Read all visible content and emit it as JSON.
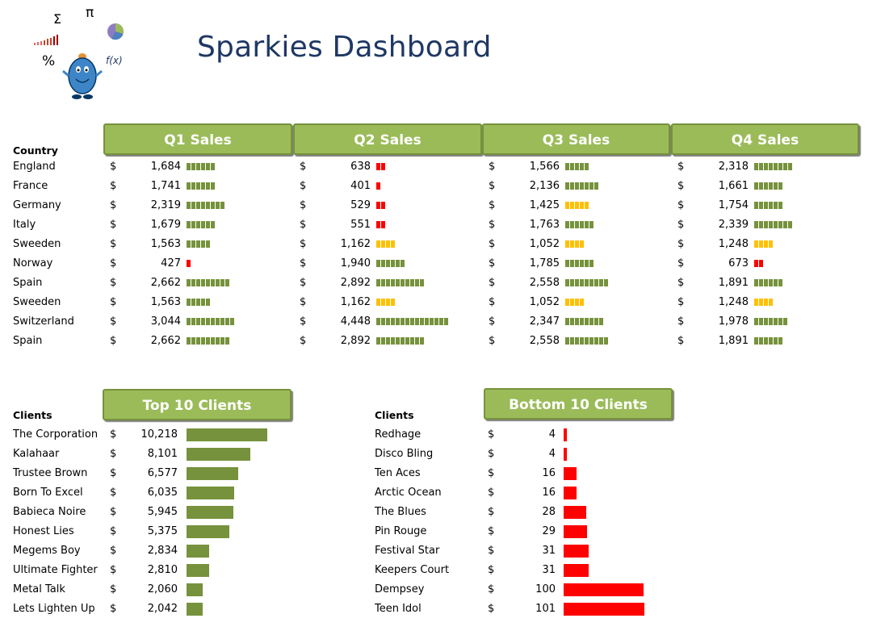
{
  "title": "Sparkies Dashboard",
  "colors": {
    "green_bar": "#76923c",
    "amber_bar": "#ffc000",
    "red_bar": "#ff0000",
    "header_fill": "#9bbb59",
    "title_color": "#1f3864"
  },
  "logo": {
    "icons": [
      "sigma-icon",
      "pi-icon",
      "pie-chart-icon",
      "bar-signal-icon",
      "percent-icon",
      "function-icon",
      "mascot-icon"
    ],
    "sigma": "Σ",
    "pi": "π",
    "percent": "%",
    "fx": "f(x)"
  },
  "currency_symbol": "$",
  "quarterly": {
    "country_label": "Country",
    "quarters": [
      "Q1 Sales",
      "Q2 Sales",
      "Q3 Sales",
      "Q4 Sales"
    ],
    "countries": [
      "England",
      "France",
      "Germany",
      "Italy",
      "Sweeden",
      "Norway",
      "Spain",
      "Sweeden",
      "Switzerland",
      "Spain"
    ],
    "values_display": [
      [
        "1,684",
        "638",
        "1,566",
        "2,318"
      ],
      [
        "1,741",
        "401",
        "2,136",
        "1,661"
      ],
      [
        "2,319",
        "529",
        "1,425",
        "1,754"
      ],
      [
        "1,679",
        "551",
        "1,763",
        "2,339"
      ],
      [
        "1,563",
        "1,162",
        "1,052",
        "1,248"
      ],
      [
        "427",
        "1,940",
        "1,785",
        "673"
      ],
      [
        "2,662",
        "2,892",
        "2,558",
        "1,891"
      ],
      [
        "1,563",
        "1,162",
        "1,052",
        "1,248"
      ],
      [
        "3,044",
        "4,448",
        "2,347",
        "1,978"
      ],
      [
        "2,662",
        "2,892",
        "2,558",
        "1,891"
      ]
    ]
  },
  "top_clients": {
    "header": "Top 10 Clients",
    "label": "Clients",
    "names": [
      "The Corporation",
      "Kalahaar",
      "Trustee Brown",
      "Born To Excel",
      "Babieca Noire",
      "Honest Lies",
      "Megems Boy",
      "Ultimate Fighter",
      "Metal Talk",
      "Lets Lighten Up"
    ],
    "values_display": [
      "10,218",
      "8,101",
      "6,577",
      "6,035",
      "5,945",
      "5,375",
      "2,834",
      "2,810",
      "2,060",
      "2,042"
    ]
  },
  "bottom_clients": {
    "header": "Bottom  10 Clients",
    "label": "Clients",
    "names": [
      "Redhage",
      "Disco Bling",
      "Ten Aces",
      "Arctic Ocean",
      "The Blues",
      "Pin Rouge",
      "Festival Star",
      "Keepers Court",
      "Dempsey",
      "Teen Idol"
    ],
    "values_display": [
      "4",
      "4",
      "16",
      "16",
      "28",
      "29",
      "31",
      "31",
      "100",
      "101"
    ]
  },
  "chart_data": [
    {
      "type": "bar",
      "title": "Q1 Sales",
      "categories": [
        "England",
        "France",
        "Germany",
        "Italy",
        "Sweeden",
        "Norway",
        "Spain",
        "Sweeden",
        "Switzerland",
        "Spain"
      ],
      "values": [
        1684,
        1741,
        2319,
        1679,
        1563,
        427,
        2662,
        1563,
        3044,
        2662
      ]
    },
    {
      "type": "bar",
      "title": "Q2 Sales",
      "categories": [
        "England",
        "France",
        "Germany",
        "Italy",
        "Sweeden",
        "Norway",
        "Spain",
        "Sweeden",
        "Switzerland",
        "Spain"
      ],
      "values": [
        638,
        401,
        529,
        551,
        1162,
        1940,
        2892,
        1162,
        4448,
        2892
      ]
    },
    {
      "type": "bar",
      "title": "Q3 Sales",
      "categories": [
        "England",
        "France",
        "Germany",
        "Italy",
        "Sweeden",
        "Norway",
        "Spain",
        "Sweeden",
        "Switzerland",
        "Spain"
      ],
      "values": [
        1566,
        2136,
        1425,
        1763,
        1052,
        1785,
        2558,
        1052,
        2347,
        2558
      ]
    },
    {
      "type": "bar",
      "title": "Q4 Sales",
      "categories": [
        "England",
        "France",
        "Germany",
        "Italy",
        "Sweeden",
        "Norway",
        "Spain",
        "Sweeden",
        "Switzerland",
        "Spain"
      ],
      "values": [
        2318,
        1661,
        1754,
        2339,
        1248,
        673,
        1891,
        1248,
        1978,
        1891
      ]
    },
    {
      "type": "bar",
      "title": "Top 10 Clients",
      "categories": [
        "The Corporation",
        "Kalahaar",
        "Trustee Brown",
        "Born To Excel",
        "Babieca Noire",
        "Honest Lies",
        "Megems Boy",
        "Ultimate Fighter",
        "Metal Talk",
        "Lets Lighten Up"
      ],
      "values": [
        10218,
        8101,
        6577,
        6035,
        5945,
        5375,
        2834,
        2810,
        2060,
        2042
      ]
    },
    {
      "type": "bar",
      "title": "Bottom  10 Clients",
      "categories": [
        "Redhage",
        "Disco Bling",
        "Ten Aces",
        "Arctic Ocean",
        "The Blues",
        "Pin Rouge",
        "Festival Star",
        "Keepers Court",
        "Dempsey",
        "Teen Idol"
      ],
      "values": [
        4,
        4,
        16,
        16,
        28,
        29,
        31,
        31,
        100,
        101
      ]
    }
  ]
}
